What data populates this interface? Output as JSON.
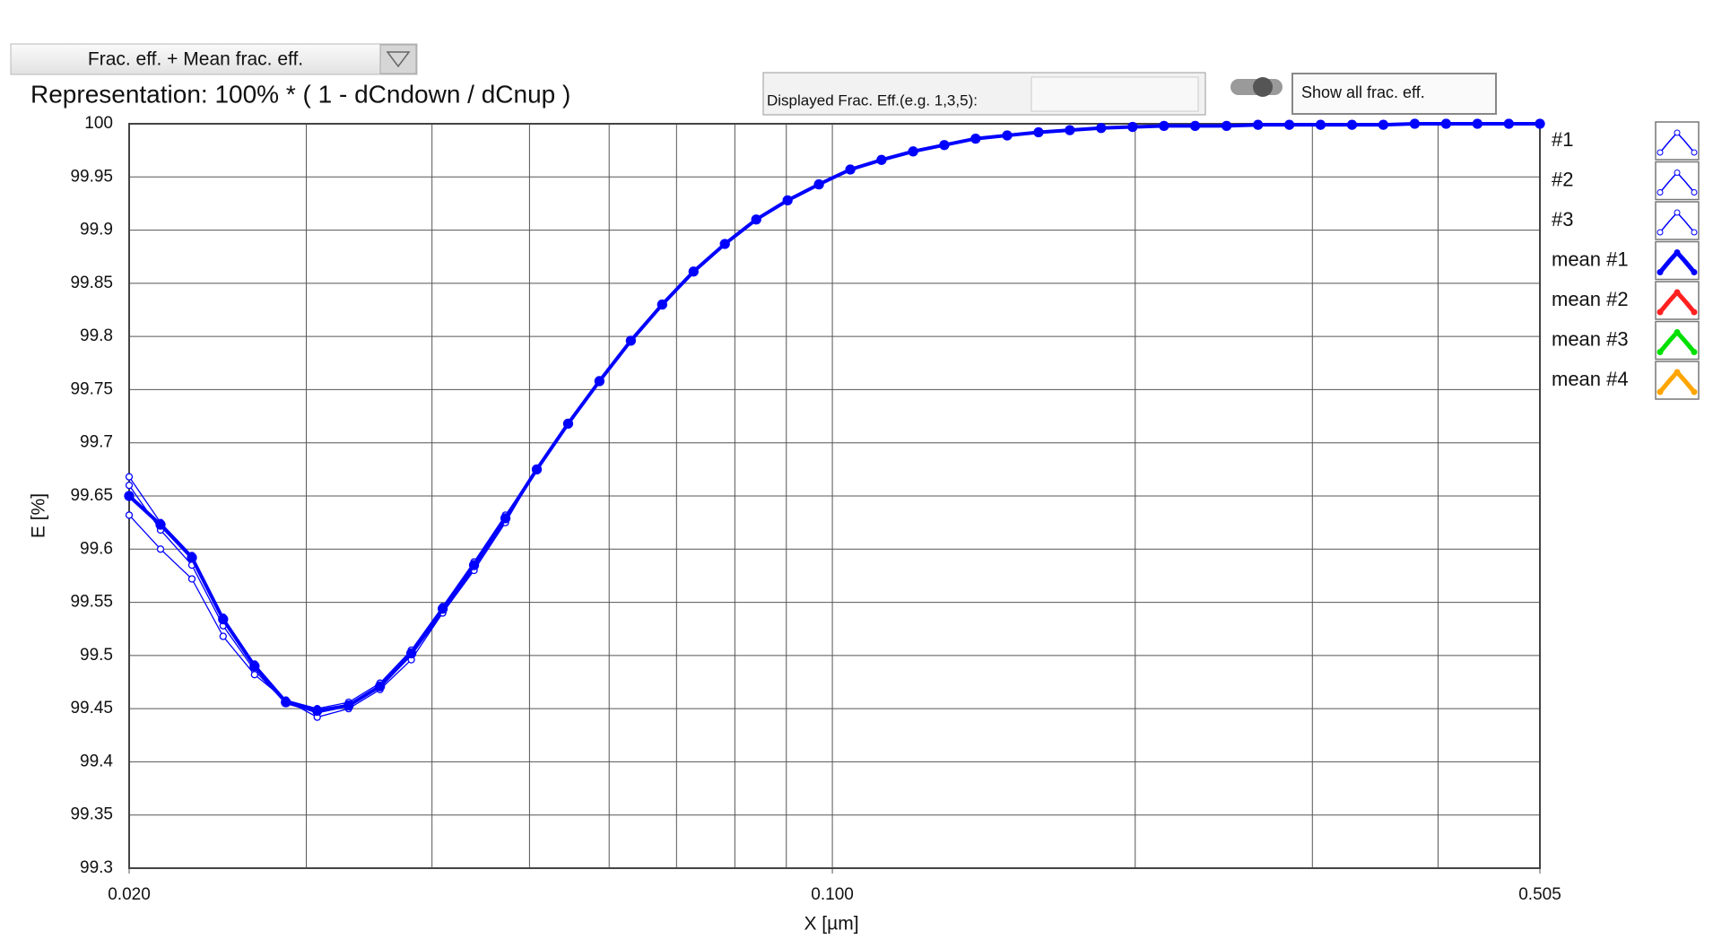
{
  "controls": {
    "dropdown": "Frac. eff. + Mean frac. eff.",
    "representation": "Representation: 100% * ( 1 - dCndown / dCnup )",
    "displayed_label": "Displayed Frac. Eff.(e.g. 1,3,5):",
    "show_all_button": "Show all frac. eff."
  },
  "chart_data": {
    "type": "line",
    "xlabel": "X [µm]",
    "ylabel": "E [%]",
    "xscale": "log",
    "xlim": [
      0.02,
      0.505
    ],
    "xticks": [
      {
        "value": 0.02,
        "label": "0.020"
      },
      {
        "value": 0.1,
        "label": "0.100"
      },
      {
        "value": 0.505,
        "label": "0.505"
      }
    ],
    "xgrid": [
      0.02,
      0.03,
      0.04,
      0.05,
      0.06,
      0.07,
      0.08,
      0.09,
      0.1,
      0.2,
      0.3,
      0.4,
      0.505
    ],
    "ylim": [
      99.3,
      100
    ],
    "yticks": [
      99.3,
      99.35,
      99.4,
      99.45,
      99.5,
      99.55,
      99.6,
      99.65,
      99.7,
      99.75,
      99.8,
      99.85,
      99.9,
      99.95,
      100
    ],
    "grid": true,
    "legend": "right",
    "x": [
      0.02,
      0.02149,
      0.02309,
      0.0248,
      0.02665,
      0.02863,
      0.03076,
      0.03305,
      0.03551,
      0.03815,
      0.04099,
      0.04404,
      0.04732,
      0.05084,
      0.05462,
      0.05868,
      0.06305,
      0.06774,
      0.07278,
      0.07819,
      0.08401,
      0.09026,
      0.09697,
      0.1042,
      0.1119,
      0.1203,
      0.1292,
      0.1388,
      0.1492,
      0.1603,
      0.1722,
      0.185,
      0.1988,
      0.2136,
      0.2294,
      0.2465,
      0.2649,
      0.2846,
      0.3057,
      0.3285,
      0.3529,
      0.3792,
      0.4074,
      0.4377,
      0.4703,
      0.505
    ],
    "series": [
      {
        "name": "#1",
        "color": "#0000ff",
        "marker": "circle-open",
        "values": [
          99.668,
          99.625,
          99.594,
          99.536,
          99.492,
          99.458,
          99.45,
          99.456,
          99.474,
          99.505,
          99.546,
          99.588,
          99.632,
          99.675,
          99.718,
          99.758,
          99.796,
          99.83,
          99.861,
          99.887,
          99.91,
          99.928,
          99.943,
          99.957,
          99.966,
          99.974,
          99.98,
          99.986,
          99.989,
          99.992,
          99.994,
          99.996,
          99.997,
          99.998,
          99.998,
          99.998,
          99.999,
          99.999,
          99.999,
          99.999,
          99.999,
          100,
          100,
          100,
          100,
          100
        ]
      },
      {
        "name": "#2",
        "color": "#0000ff",
        "marker": "circle-open",
        "values": [
          99.66,
          99.618,
          99.585,
          99.528,
          99.486,
          99.455,
          99.446,
          99.452,
          99.47,
          99.5,
          99.54,
          99.582,
          99.627,
          99.675,
          99.718,
          99.758,
          99.796,
          99.83,
          99.861,
          99.887,
          99.91,
          99.928,
          99.943,
          99.957,
          99.966,
          99.974,
          99.98,
          99.986,
          99.989,
          99.992,
          99.994,
          99.996,
          99.997,
          99.998,
          99.998,
          99.998,
          99.999,
          99.999,
          99.999,
          99.999,
          99.999,
          100,
          100,
          100,
          100,
          100
        ]
      },
      {
        "name": "#3",
        "color": "#0000ff",
        "marker": "circle-open",
        "values": [
          99.632,
          99.6,
          99.572,
          99.518,
          99.482,
          99.458,
          99.442,
          99.45,
          99.468,
          99.496,
          99.54,
          99.58,
          99.625,
          99.675,
          99.718,
          99.758,
          99.796,
          99.83,
          99.861,
          99.887,
          99.91,
          99.928,
          99.943,
          99.957,
          99.966,
          99.974,
          99.98,
          99.986,
          99.989,
          99.992,
          99.994,
          99.996,
          99.997,
          99.998,
          99.998,
          99.998,
          99.999,
          99.999,
          99.999,
          99.999,
          99.999,
          100,
          100,
          100,
          100,
          100
        ]
      },
      {
        "name": "mean #1",
        "color": "#0000ff",
        "marker": "circle-filled",
        "values": [
          99.65,
          99.623,
          99.592,
          99.534,
          99.49,
          99.456,
          99.448,
          99.453,
          99.471,
          99.502,
          99.544,
          99.585,
          99.629,
          99.675,
          99.718,
          99.758,
          99.796,
          99.83,
          99.861,
          99.887,
          99.91,
          99.928,
          99.943,
          99.957,
          99.966,
          99.974,
          99.98,
          99.986,
          99.989,
          99.992,
          99.994,
          99.996,
          99.997,
          99.998,
          99.998,
          99.998,
          99.999,
          99.999,
          99.999,
          99.999,
          99.999,
          100,
          100,
          100,
          100,
          100
        ]
      },
      {
        "name": "mean #2",
        "color": "#ff2020",
        "marker": "circle-filled"
      },
      {
        "name": "mean #3",
        "color": "#00e000",
        "marker": "circle-filled"
      },
      {
        "name": "mean #4",
        "color": "#ffa500",
        "marker": "circle-filled"
      }
    ]
  }
}
